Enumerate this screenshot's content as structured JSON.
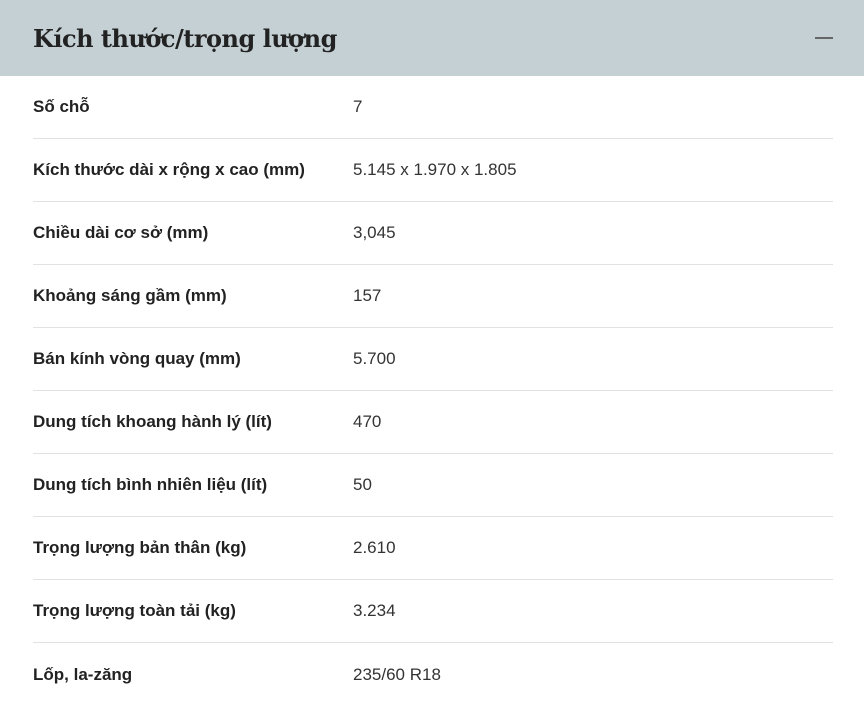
{
  "section": {
    "title": "Kích thước/trọng lượng",
    "collapse_icon": "minus-icon",
    "rows": [
      {
        "label": "Số chỗ",
        "value": "7"
      },
      {
        "label": "Kích thước dài x rộng x cao (mm)",
        "value": "5.145 x 1.970 x 1.805"
      },
      {
        "label": "Chiều dài cơ sở (mm)",
        "value": "3,045"
      },
      {
        "label": "Khoảng sáng gầm (mm)",
        "value": "157"
      },
      {
        "label": "Bán kính vòng quay (mm)",
        "value": "5.700"
      },
      {
        "label": "Dung tích khoang hành lý (lít)",
        "value": "470"
      },
      {
        "label": "Dung tích bình nhiên liệu (lít)",
        "value": "50"
      },
      {
        "label": "Trọng lượng bản thân (kg)",
        "value": "2.610"
      },
      {
        "label": "Trọng lượng toàn tải (kg)",
        "value": "3.234"
      },
      {
        "label": "Lốp, la-zăng",
        "value": "235/60 R18"
      }
    ]
  }
}
